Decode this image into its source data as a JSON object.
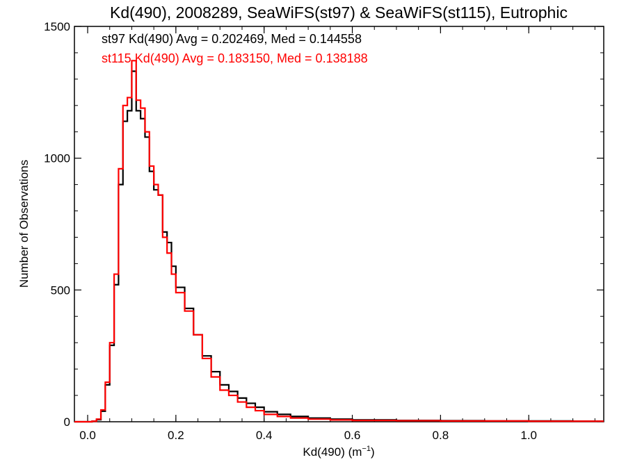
{
  "chart_data": {
    "type": "line",
    "title": "Kd(490), 2008289, SeaWiFS(st97) & SeaWiFS(st115), Eutrophic",
    "xlabel": "Kd(490) (m",
    "xlabel_sup": "−1",
    "xlabel_close": ")",
    "ylabel": "Number of Observations",
    "xlim": [
      -0.03,
      1.17
    ],
    "ylim": [
      0,
      1500
    ],
    "x_ticks": [
      0.0,
      0.2,
      0.4,
      0.6,
      0.8,
      1.0
    ],
    "x_tick_labels": [
      "0.0",
      "0.2",
      "0.4",
      "0.6",
      "0.8",
      "1.0"
    ],
    "y_ticks": [
      0,
      500,
      1000,
      1500
    ],
    "y_tick_labels": [
      "0",
      "500",
      "1000",
      "1500"
    ],
    "step_style": "histogram",
    "x": [
      0.0,
      0.01,
      0.02,
      0.03,
      0.04,
      0.05,
      0.06,
      0.07,
      0.08,
      0.09,
      0.1,
      0.11,
      0.12,
      0.13,
      0.14,
      0.15,
      0.16,
      0.17,
      0.18,
      0.19,
      0.2,
      0.22,
      0.24,
      0.26,
      0.28,
      0.3,
      0.32,
      0.34,
      0.36,
      0.38,
      0.4,
      0.43,
      0.46,
      0.5,
      0.55,
      0.6,
      0.7,
      0.8,
      0.9,
      1.0,
      1.1,
      1.17
    ],
    "series": [
      {
        "name": "st97",
        "color": "#000000",
        "values": [
          0,
          2,
          8,
          40,
          140,
          290,
          520,
          900,
          1140,
          1180,
          1330,
          1180,
          1150,
          1080,
          950,
          880,
          860,
          720,
          680,
          590,
          510,
          430,
          330,
          250,
          190,
          140,
          115,
          90,
          70,
          55,
          38,
          28,
          20,
          14,
          10,
          7,
          5,
          4,
          3,
          3,
          2,
          2
        ]
      },
      {
        "name": "st115",
        "color": "#ff0000",
        "values": [
          0,
          2,
          10,
          45,
          150,
          300,
          560,
          960,
          1200,
          1230,
          1370,
          1220,
          1190,
          1100,
          970,
          900,
          860,
          700,
          640,
          560,
          490,
          420,
          330,
          240,
          170,
          120,
          100,
          75,
          55,
          42,
          28,
          20,
          14,
          10,
          7,
          5,
          4,
          3,
          3,
          2,
          2,
          2
        ]
      }
    ],
    "annotations": [
      {
        "text": "st97 Kd(490) Avg = 0.202469, Med = 0.144558",
        "color": "#000000"
      },
      {
        "text": "st115 Kd(490) Avg = 0.183150, Med = 0.138188",
        "color": "#ff0000"
      }
    ],
    "grid": false,
    "legend": "none"
  }
}
